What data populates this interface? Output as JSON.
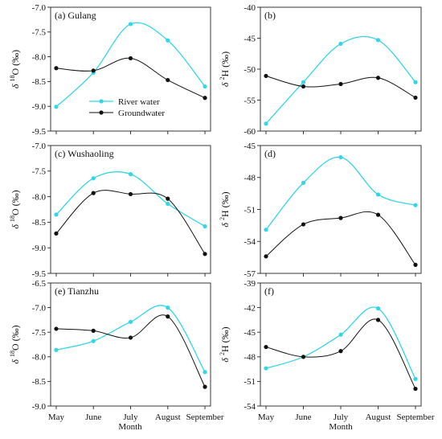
{
  "figure": {
    "xlabel": "Month",
    "categories": [
      "May",
      "June",
      "July",
      "August",
      "September"
    ]
  },
  "colors": {
    "river": "#33d6e6",
    "ground": "#111111",
    "frame": "#222222"
  },
  "legend": {
    "river_label": "River water",
    "ground_label": "Groundwater",
    "placement": "lower-left of panel (a)"
  },
  "chart_data": [
    {
      "type": "line",
      "panel": "(a) Gulang",
      "ylabel": "δ 18O (‰)",
      "ylim": [
        -9.5,
        -7.0
      ],
      "yticks": [
        "-7.0",
        "-7.5",
        "-8.0",
        "-8.5",
        "-9.0",
        "-9.5"
      ],
      "categories": [
        "May",
        "June",
        "July",
        "August",
        "September"
      ],
      "series": [
        {
          "name": "River water",
          "values": [
            -9.01,
            -8.32,
            -7.34,
            -7.67,
            -8.6
          ]
        },
        {
          "name": "Groundwater",
          "values": [
            -8.23,
            -8.28,
            -8.03,
            -8.47,
            -8.83
          ]
        }
      ]
    },
    {
      "type": "line",
      "panel": "(b)",
      "ylabel": "δ 2H (‰)",
      "ylim": [
        -60,
        -40
      ],
      "yticks": [
        "-40",
        "-45",
        "-50",
        "-55",
        "-60"
      ],
      "categories": [
        "May",
        "June",
        "July",
        "August",
        "September"
      ],
      "series": [
        {
          "name": "River water",
          "values": [
            -58.8,
            -52.1,
            -45.9,
            -45.3,
            -52.1
          ]
        },
        {
          "name": "Groundwater",
          "values": [
            -51.1,
            -52.8,
            -52.4,
            -51.4,
            -54.6
          ]
        }
      ]
    },
    {
      "type": "line",
      "panel": "(c) Wushaoling",
      "ylabel": "δ 18O (‰)",
      "ylim": [
        -9.5,
        -7.0
      ],
      "yticks": [
        "-7.0",
        "-7.5",
        "-8.0",
        "-8.5",
        "-9.0",
        "-9.5"
      ],
      "categories": [
        "May",
        "June",
        "July",
        "August",
        "September"
      ],
      "series": [
        {
          "name": "River water",
          "values": [
            -8.35,
            -7.64,
            -7.56,
            -8.14,
            -8.58
          ]
        },
        {
          "name": "Groundwater",
          "values": [
            -8.72,
            -7.93,
            -7.95,
            -8.04,
            -9.12
          ]
        }
      ]
    },
    {
      "type": "line",
      "panel": "(d)",
      "ylabel": "δ 2H (‰)",
      "ylim": [
        -57,
        -45
      ],
      "yticks": [
        "-45",
        "-48",
        "-51",
        "-54",
        "-57"
      ],
      "categories": [
        "May",
        "June",
        "July",
        "August",
        "September"
      ],
      "series": [
        {
          "name": "River water",
          "values": [
            -52.9,
            -48.5,
            -46.1,
            -49.6,
            -50.6
          ]
        },
        {
          "name": "Groundwater",
          "values": [
            -55.4,
            -52.4,
            -51.8,
            -51.5,
            -56.2
          ]
        }
      ]
    },
    {
      "type": "line",
      "panel": "(e) Tianzhu",
      "ylabel": "δ 18O (‰)",
      "ylim": [
        -9.0,
        -6.5
      ],
      "yticks": [
        "-6.5",
        "-7.0",
        "-7.5",
        "-8.0",
        "-8.5",
        "-9.0"
      ],
      "categories": [
        "May",
        "June",
        "July",
        "August",
        "September"
      ],
      "series": [
        {
          "name": "River water",
          "values": [
            -7.86,
            -7.68,
            -7.29,
            -7.0,
            -8.31
          ]
        },
        {
          "name": "Groundwater",
          "values": [
            -7.43,
            -7.47,
            -7.61,
            -7.18,
            -8.61
          ]
        }
      ]
    },
    {
      "type": "line",
      "panel": "(f)",
      "ylabel": "δ 2H (‰)",
      "ylim": [
        -54,
        -39
      ],
      "yticks": [
        "-39",
        "-42",
        "-45",
        "-48",
        "-51",
        "-54"
      ],
      "categories": [
        "May",
        "June",
        "July",
        "August",
        "September"
      ],
      "series": [
        {
          "name": "River water",
          "values": [
            -49.4,
            -48.0,
            -45.3,
            -42.1,
            -50.7
          ]
        },
        {
          "name": "Groundwater",
          "values": [
            -46.8,
            -48.0,
            -47.3,
            -43.5,
            -51.9
          ]
        }
      ]
    }
  ]
}
